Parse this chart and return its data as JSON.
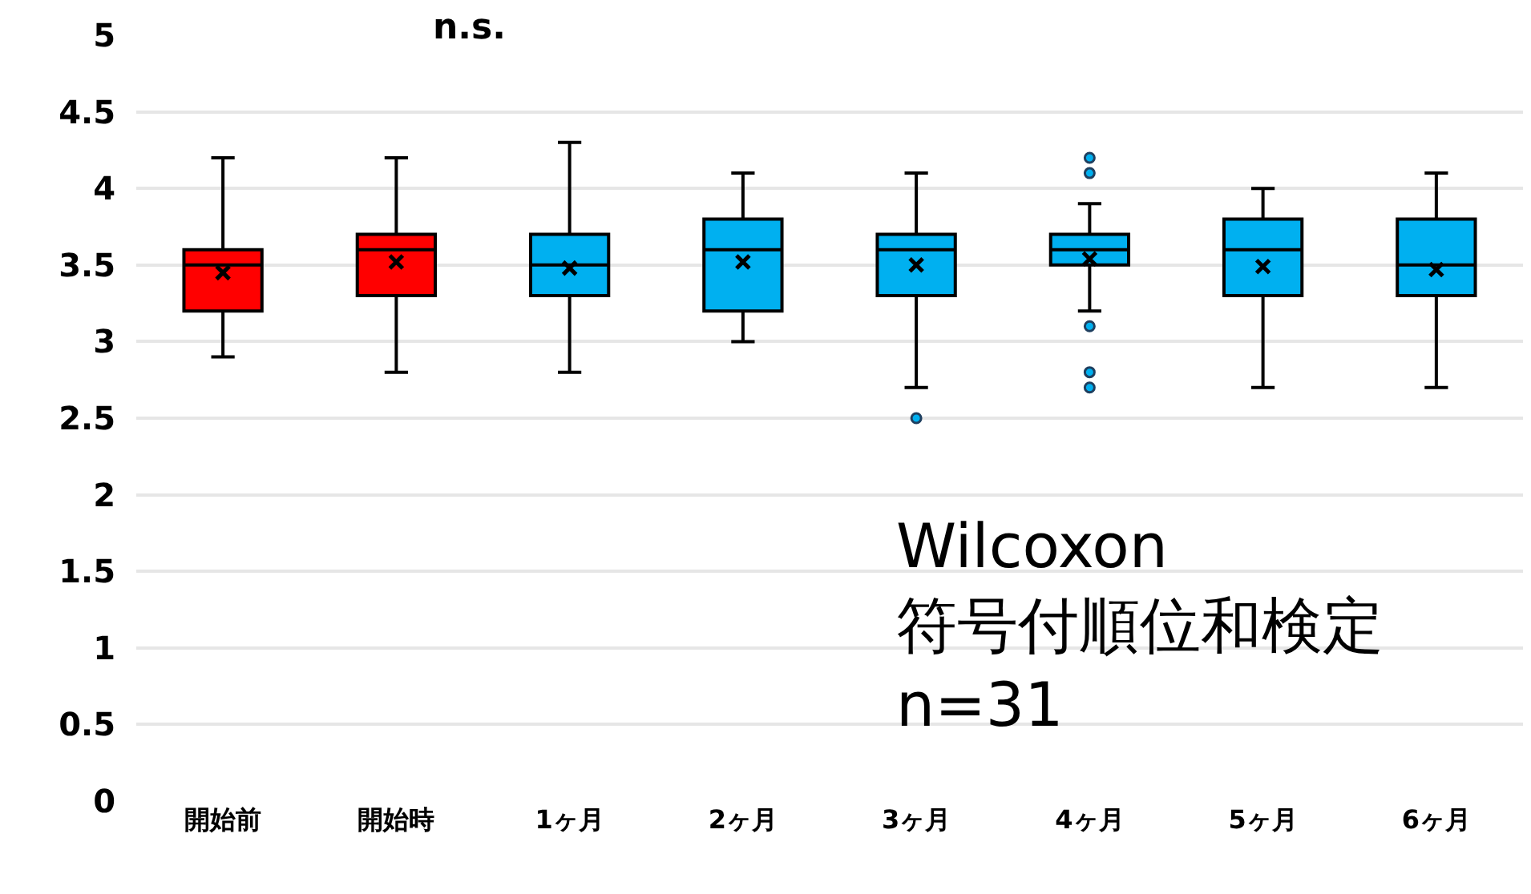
{
  "chart_data": {
    "type": "box",
    "categories": [
      "開始前",
      "開始時",
      "1ヶ月",
      "2ヶ月",
      "3ヶ月",
      "4ヶ月",
      "5ヶ月",
      "6ヶ月"
    ],
    "colors": [
      "#ff0000",
      "#ff0000",
      "#00b0f0",
      "#00b0f0",
      "#00b0f0",
      "#00b0f0",
      "#00b0f0",
      "#00b0f0"
    ],
    "boxes": [
      {
        "low": 2.9,
        "q1": 3.2,
        "median": 3.5,
        "q3": 3.6,
        "high": 4.2,
        "mean": 3.45
      },
      {
        "low": 2.8,
        "q1": 3.3,
        "median": 3.6,
        "q3": 3.7,
        "high": 4.2,
        "mean": 3.52
      },
      {
        "low": 2.8,
        "q1": 3.3,
        "median": 3.5,
        "q3": 3.7,
        "high": 4.3,
        "mean": 3.48
      },
      {
        "low": 3.0,
        "q1": 3.2,
        "median": 3.6,
        "q3": 3.8,
        "high": 4.1,
        "mean": 3.52
      },
      {
        "low": 2.7,
        "q1": 3.3,
        "median": 3.6,
        "q3": 3.7,
        "high": 4.1,
        "mean": 3.5,
        "outliers": [
          2.5
        ]
      },
      {
        "low": 3.2,
        "q1": 3.5,
        "median": 3.6,
        "q3": 3.7,
        "high": 3.9,
        "mean": 3.54,
        "outliers": [
          4.2,
          4.1,
          3.1,
          2.8,
          2.7
        ]
      },
      {
        "low": 2.7,
        "q1": 3.3,
        "median": 3.6,
        "q3": 3.8,
        "high": 4.0,
        "mean": 3.49
      },
      {
        "low": 2.7,
        "q1": 3.3,
        "median": 3.5,
        "q3": 3.8,
        "high": 4.1,
        "mean": 3.47
      }
    ],
    "ylim": [
      0,
      5
    ],
    "yticks": [
      0,
      0.5,
      1,
      1.5,
      2,
      2.5,
      3,
      3.5,
      4,
      4.5,
      5
    ],
    "grid": "y",
    "annotations": [
      "n.s.",
      "Wilcoxon\n符号付順位和検定\nn=31"
    ]
  }
}
